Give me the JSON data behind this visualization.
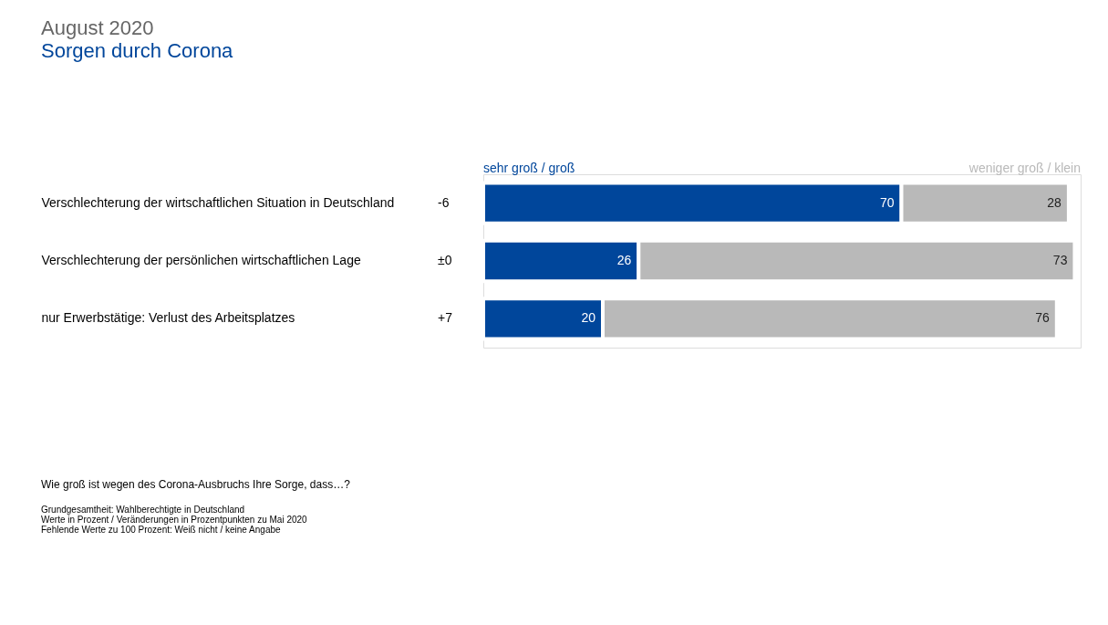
{
  "chart_data": {
    "type": "bar",
    "orientation": "horizontal",
    "stacked": true,
    "title": "August 2020",
    "subtitle": "Sorgen durch Corona",
    "categories": [
      "Verschlechterung der wirtschaftlichen Situation in Deutschland",
      "Verschlechterung der persönlichen wirtschaftlichen Lage",
      "nur Erwerbstätige: Verlust des Arbeitsplatzes"
    ],
    "series": [
      {
        "name": "sehr groß / groß",
        "color": "#00469b",
        "values": [
          70,
          26,
          20
        ]
      },
      {
        "name": "weniger groß / klein",
        "color": "#b9b9b9",
        "values": [
          28,
          73,
          76
        ]
      }
    ],
    "xlim": [
      0,
      100
    ],
    "tick_labels": "y",
    "data_labels": true,
    "legend": "top",
    "grid": false,
    "annotations": [
      "-6",
      "±0",
      "+7",
      "Wie groß ist wegen des Corona-Ausbruchs Ihre Sorge, dass…?",
      "Grundgesamtheit: Wahlberechtigte in Deutschland",
      "Werte in Prozent / Veränderungen in Prozentpunkten zu Mai 2020",
      "Fehlende Werte zu 100 Prozent: Weiß nicht / keine Angabe"
    ]
  }
}
